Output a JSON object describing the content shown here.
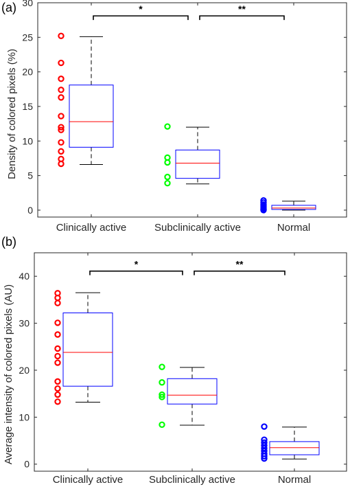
{
  "chart_data": [
    {
      "type": "box",
      "panel_label": "(a)",
      "title": "",
      "xlabel": "",
      "ylabel": "Density of colored pixels (%)",
      "ylim": [
        -1,
        30
      ],
      "yticks": [
        0,
        5,
        10,
        15,
        20,
        25,
        30
      ],
      "categories": [
        "Clinically active",
        "Subclinically active",
        "Normal"
      ],
      "box_color": "#0000ff",
      "median_color": "#ff0000",
      "whisker_color": "#000000",
      "boxes": [
        {
          "category": "Clinically active",
          "whisker_low": 6.6,
          "q1": 9.1,
          "median": 12.8,
          "q3": 18.1,
          "whisker_high": 25.1
        },
        {
          "category": "Subclinically active",
          "whisker_low": 3.8,
          "q1": 4.6,
          "median": 6.8,
          "q3": 8.7,
          "whisker_high": 12.0
        },
        {
          "category": "Normal",
          "whisker_low": 0.0,
          "q1": 0.1,
          "median": 0.3,
          "q3": 0.7,
          "whisker_high": 1.3
        }
      ],
      "points": [
        {
          "category": "Clinically active",
          "color": "#ff0000",
          "values": [
            25.2,
            21.3,
            19.0,
            17.4,
            16.3,
            13.6,
            12.0,
            11.6,
            9.8,
            8.5,
            7.4,
            6.7
          ]
        },
        {
          "category": "Subclinically active",
          "color": "#00ff00",
          "values": [
            12.1,
            7.6,
            6.9,
            4.8,
            3.9
          ]
        },
        {
          "category": "Normal",
          "color": "#0000ff",
          "values": [
            1.4,
            1.1,
            0.8,
            0.6,
            0.4,
            0.2,
            0.1,
            0.0
          ]
        }
      ],
      "significance": [
        {
          "from": "Clinically active",
          "to": "Subclinically active",
          "label": "*",
          "y": 28.1
        },
        {
          "from": "Subclinically active",
          "to": "Normal",
          "label": "**",
          "y": 28.1
        }
      ]
    },
    {
      "type": "box",
      "panel_label": "(b)",
      "title": "",
      "xlabel": "",
      "ylabel": "Average intensity of colored pixels (AU)",
      "ylim": [
        -1.5,
        45
      ],
      "yticks": [
        0,
        10,
        20,
        30,
        40
      ],
      "categories": [
        "Clinically active",
        "Subclinically active",
        "Normal"
      ],
      "box_color": "#0000ff",
      "median_color": "#ff0000",
      "whisker_color": "#000000",
      "boxes": [
        {
          "category": "Clinically active",
          "whisker_low": 13.2,
          "q1": 16.6,
          "median": 23.8,
          "q3": 32.2,
          "whisker_high": 36.5
        },
        {
          "category": "Subclinically active",
          "whisker_low": 8.3,
          "q1": 12.8,
          "median": 14.7,
          "q3": 18.2,
          "whisker_high": 20.6
        },
        {
          "category": "Normal",
          "whisker_low": 1.1,
          "q1": 2.0,
          "median": 3.5,
          "q3": 4.8,
          "whisker_high": 7.9
        }
      ],
      "points": [
        {
          "category": "Clinically active",
          "color": "#ff0000",
          "values": [
            36.4,
            35.4,
            34.3,
            30.1,
            27.6,
            24.6,
            23.0,
            21.6,
            17.6,
            16.1,
            14.8,
            13.3
          ]
        },
        {
          "category": "Subclinically active",
          "color": "#00ff00",
          "values": [
            20.7,
            17.4,
            14.8,
            14.3,
            8.4
          ]
        },
        {
          "category": "Normal",
          "color": "#0000ff",
          "values": [
            8.0,
            5.2,
            4.6,
            4.0,
            3.4,
            2.8,
            2.2,
            1.7,
            1.2
          ]
        }
      ],
      "significance": [
        {
          "from": "Clinically active",
          "to": "Subclinically active",
          "label": "*",
          "y": 41.1
        },
        {
          "from": "Subclinically active",
          "to": "Normal",
          "label": "**",
          "y": 41.1
        }
      ]
    }
  ]
}
